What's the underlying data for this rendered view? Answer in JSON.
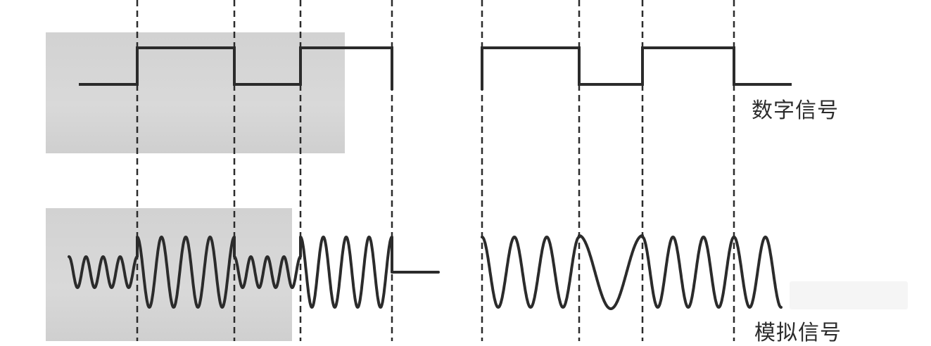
{
  "labels": {
    "digital": "数字信号",
    "analog": "模拟信号"
  },
  "colors": {
    "signal": "#2b2b2b",
    "background_panel": "#d4d4d4"
  }
}
